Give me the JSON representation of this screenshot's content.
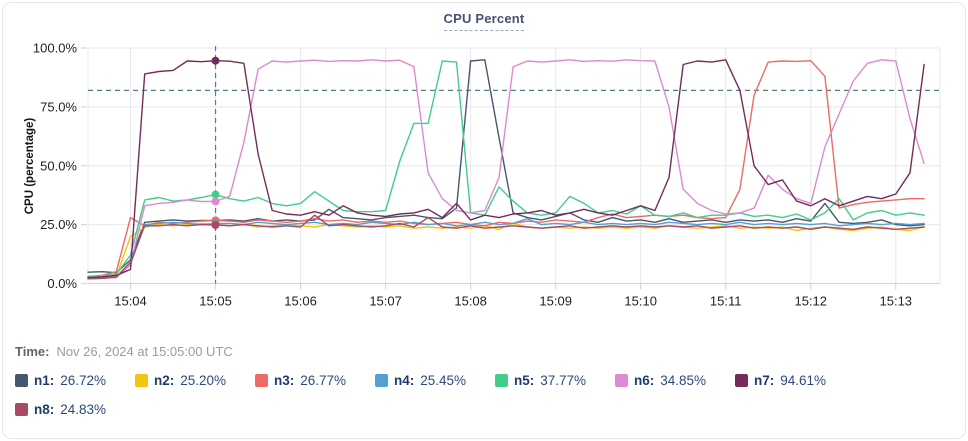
{
  "card": {
    "title": "CPU Percent"
  },
  "tooltip": {
    "time_label": "Time:",
    "time_value": "Nov 26, 2024 at 15:05:00 UTC"
  },
  "legend": [
    {
      "name": "n1",
      "value": "26.72%",
      "color": "#46586e"
    },
    {
      "name": "n2",
      "value": "25.20%",
      "color": "#f3c512"
    },
    {
      "name": "n3",
      "value": "26.77%",
      "color": "#ed6a65"
    },
    {
      "name": "n4",
      "value": "25.45%",
      "color": "#54a0d5"
    },
    {
      "name": "n5",
      "value": "37.77%",
      "color": "#41cd8a"
    },
    {
      "name": "n6",
      "value": "34.85%",
      "color": "#dd8ad0"
    },
    {
      "name": "n7",
      "value": "94.61%",
      "color": "#752b5b"
    },
    {
      "name": "n8",
      "value": "24.83%",
      "color": "#a84a63"
    }
  ],
  "chart_data": {
    "type": "line",
    "title": "CPU Percent",
    "xlabel": "",
    "ylabel": "CPU (percentage)",
    "ylim": [
      0,
      100
    ],
    "y_ticks": [
      "0.0%",
      "25.0%",
      "50.0%",
      "75.0%",
      "100.0%"
    ],
    "y_tick_values": [
      0,
      25,
      50,
      75,
      100
    ],
    "x_ticks": [
      "15:04",
      "15:05",
      "15:06",
      "15:07",
      "15:08",
      "15:09",
      "15:10",
      "15:11",
      "15:12",
      "15:13"
    ],
    "x_tick_minutes": [
      4,
      5,
      6,
      7,
      8,
      9,
      10,
      11,
      12,
      13
    ],
    "xlim_minutes": [
      3.5,
      13.52
    ],
    "x_start_minutes": 3.5,
    "x_step_minutes": 0.1666667,
    "grid": true,
    "legend_position": "bottom",
    "threshold_percent": 82,
    "threshold_color": "#527f8f",
    "crosshair_time_minutes": 5.0,
    "crosshair_index": 9,
    "crosshair_color": "#527f8f",
    "grid_color": "#e8e8ec",
    "axis_color": "#d6d7db",
    "tick_text_color": "#1c1f24",
    "series": [
      {
        "name": "n1",
        "color": "#46586e",
        "values": [
          4.8,
          5.0,
          4.6,
          10,
          26.0,
          26.5,
          27.0,
          26.5,
          26.8,
          26.72,
          27.0,
          26.5,
          27.5,
          26.5,
          27.0,
          26.5,
          27.0,
          31.5,
          28.0,
          27.5,
          27.0,
          28.0,
          28.5,
          29.0,
          28.0,
          27.5,
          32.0,
          94.5,
          95.0,
          62.0,
          30.0,
          28.0,
          27.0,
          28.5,
          30.0,
          27.0,
          26.0,
          28.0,
          26.5,
          27.0,
          26.0,
          27.5,
          26.0,
          26.5,
          27.0,
          26.0,
          27.0,
          26.5,
          27.0,
          26.0,
          27.5,
          26.5,
          34.0,
          26.0,
          25.5,
          26.0,
          27.0,
          25.0,
          24.5,
          25.0
        ]
      },
      {
        "name": "n2",
        "color": "#f3c512",
        "values": [
          2.5,
          2.8,
          3.0,
          20,
          24.0,
          25.0,
          24.5,
          25.0,
          25.5,
          25.2,
          24.5,
          25.0,
          24.0,
          24.5,
          25.0,
          24.5,
          24.0,
          25.0,
          24.5,
          24.0,
          24.5,
          24.0,
          24.5,
          23.5,
          24.0,
          23.5,
          24.0,
          23.5,
          24.5,
          23.0,
          25.5,
          24.0,
          23.5,
          24.0,
          23.5,
          24.0,
          23.5,
          24.0,
          23.5,
          24.0,
          23.5,
          24.5,
          24.0,
          23.5,
          24.0,
          24.5,
          23.5,
          24.0,
          23.5,
          24.0,
          22.5,
          23.5,
          24.0,
          23.0,
          22.5,
          23.5,
          24.0,
          23.0,
          22.5,
          24.0
        ]
      },
      {
        "name": "n3",
        "color": "#ed6a65",
        "values": [
          3.0,
          3.5,
          5.0,
          28.0,
          24.5,
          26.0,
          25.5,
          26.0,
          26.5,
          26.77,
          26.5,
          26.0,
          27.0,
          26.5,
          26.0,
          26.5,
          27.5,
          26.5,
          27.0,
          26.0,
          26.5,
          26.0,
          26.5,
          25.5,
          25.0,
          25.5,
          26.0,
          25.0,
          24.5,
          26.0,
          25.5,
          26.5,
          26.0,
          27.0,
          26.5,
          26.0,
          28.0,
          29.5,
          28.0,
          28.5,
          29.0,
          28.5,
          29.0,
          28.0,
          27.5,
          28.0,
          40.0,
          80.0,
          94.0,
          94.5,
          94.3,
          94.6,
          88.0,
          32.0,
          33.5,
          34.5,
          35.0,
          35.5,
          36.0,
          36.0
        ]
      },
      {
        "name": "n4",
        "color": "#54a0d5",
        "values": [
          2.0,
          2.3,
          2.5,
          8.0,
          25.0,
          25.5,
          26.0,
          25.5,
          25.0,
          25.45,
          25.5,
          25.0,
          26.0,
          25.5,
          25.0,
          25.5,
          26.0,
          25.0,
          25.5,
          25.0,
          26.0,
          25.5,
          25.0,
          26.0,
          25.0,
          25.5,
          24.5,
          25.0,
          26.0,
          25.0,
          25.5,
          27.5,
          25.0,
          25.5,
          25.0,
          26.0,
          25.0,
          25.5,
          25.0,
          25.5,
          25.0,
          26.0,
          25.5,
          25.0,
          25.5,
          25.0,
          26.0,
          25.0,
          25.5,
          25.0,
          25.5,
          25.0,
          25.5,
          24.5,
          25.0,
          25.5,
          25.0,
          25.5,
          25.0,
          25.5
        ]
      },
      {
        "name": "n5",
        "color": "#41cd8a",
        "values": [
          3.0,
          3.2,
          4.0,
          12.0,
          35.5,
          36.5,
          35.0,
          35.5,
          36.5,
          37.77,
          36.0,
          35.0,
          36.5,
          34.0,
          33.0,
          34.0,
          39.0,
          35.0,
          31.0,
          30.5,
          30.5,
          31.0,
          52.0,
          68.0,
          68.0,
          94.5,
          94.0,
          30.0,
          29.0,
          41.0,
          35.0,
          30.0,
          29.0,
          30.0,
          37.0,
          34.0,
          30.0,
          31.0,
          29.5,
          33.0,
          29.0,
          28.5,
          30.0,
          28.0,
          29.0,
          29.0,
          30.0,
          28.5,
          29.0,
          28.0,
          29.5,
          27.0,
          30.0,
          36.0,
          27.0,
          30.0,
          31.0,
          29.0,
          30.0,
          29.0
        ]
      },
      {
        "name": "n6",
        "color": "#dd8ad0",
        "values": [
          2.0,
          2.2,
          2.5,
          8.0,
          33.0,
          34.0,
          34.5,
          35.5,
          34.8,
          34.85,
          37.0,
          60.0,
          91.0,
          94.5,
          94.0,
          94.5,
          94.8,
          94.3,
          94.6,
          94.5,
          95.0,
          94.5,
          94.8,
          92.0,
          47.0,
          36.0,
          31.0,
          30.0,
          31.0,
          45.0,
          92.0,
          94.5,
          94.0,
          94.5,
          95.0,
          94.3,
          94.6,
          94.4,
          95.0,
          94.6,
          94.5,
          75.0,
          40.0,
          34.0,
          31.0,
          29.5,
          30.0,
          32.0,
          46.0,
          40.0,
          36.0,
          34.0,
          58.0,
          72.0,
          86.0,
          93.5,
          95.0,
          94.5,
          70.0,
          51.0
        ]
      },
      {
        "name": "n7",
        "color": "#752b5b",
        "values": [
          2.5,
          2.8,
          3.5,
          6.0,
          89.0,
          90.0,
          90.5,
          94.5,
          94.2,
          94.61,
          94.4,
          93.5,
          55.0,
          31.0,
          29.5,
          29.0,
          30.5,
          29.0,
          33.0,
          30.0,
          29.0,
          28.5,
          29.5,
          30.0,
          31.5,
          28.0,
          34.0,
          27.0,
          29.0,
          28.0,
          29.5,
          30.0,
          31.0,
          29.0,
          30.0,
          31.5,
          30.0,
          29.0,
          31.0,
          33.0,
          31.0,
          45.0,
          93.0,
          94.5,
          94.0,
          95.0,
          82.0,
          50.0,
          42.0,
          44.0,
          35.0,
          33.0,
          36.0,
          33.0,
          35.0,
          37.0,
          36.0,
          38.0,
          47.0,
          93.0
        ]
      },
      {
        "name": "n8",
        "color": "#a84a63",
        "values": [
          2.0,
          2.2,
          2.8,
          9.0,
          24.5,
          24.5,
          25.0,
          24.5,
          25.0,
          24.83,
          24.5,
          25.0,
          24.5,
          24.0,
          24.5,
          24.0,
          29.0,
          24.5,
          25.0,
          24.5,
          24.0,
          24.5,
          25.5,
          24.0,
          28.0,
          24.0,
          23.5,
          24.5,
          23.5,
          24.0,
          24.5,
          24.0,
          23.5,
          24.0,
          24.5,
          23.5,
          24.0,
          24.5,
          24.0,
          24.5,
          24.0,
          24.5,
          24.0,
          24.5,
          23.5,
          24.0,
          24.5,
          23.5,
          24.0,
          23.5,
          24.0,
          23.0,
          24.0,
          23.5,
          23.0,
          24.0,
          23.5,
          23.0,
          23.5,
          24.0
        ]
      }
    ]
  }
}
